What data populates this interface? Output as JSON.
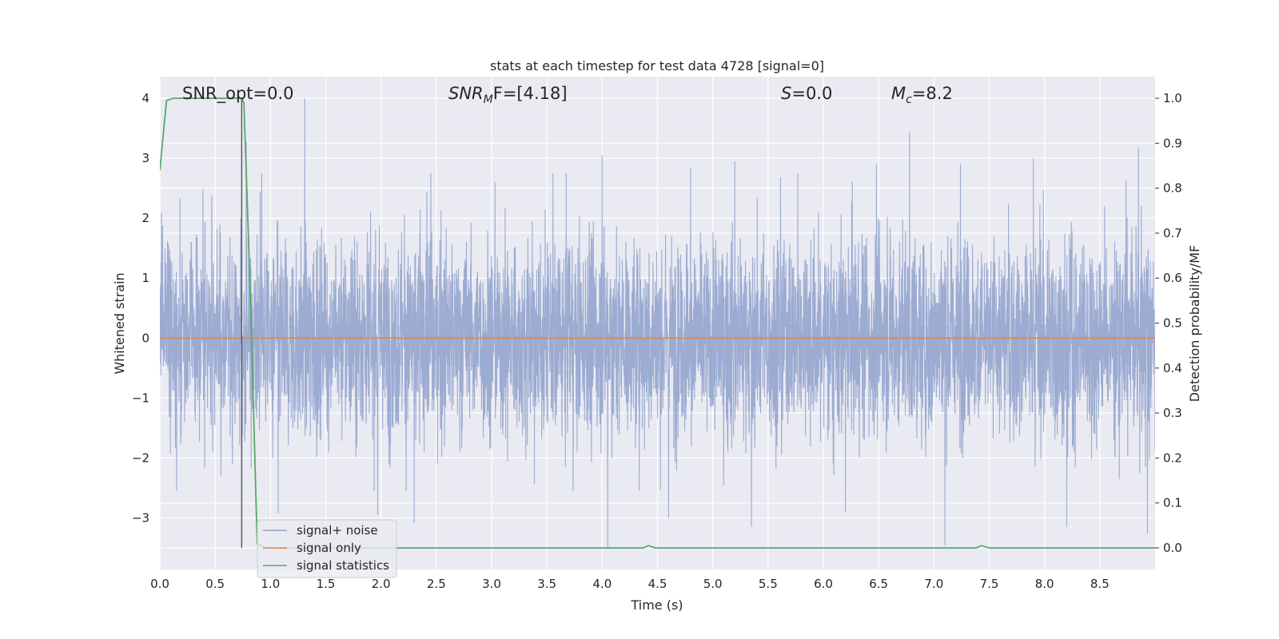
{
  "chart_data": {
    "type": "line",
    "title": "stats at each timestep for test data 4728 [signal=0]",
    "xlabel": "Time (s)",
    "ylabel_left": "Whitened strain",
    "ylabel_right": "Detection probability/MF",
    "xlim": [
      0.0,
      9.0
    ],
    "ylim_left": [
      -3.86,
      4.36
    ],
    "ylim_right": [
      -0.048,
      1.048
    ],
    "x_ticks": [
      "0.0",
      "0.5",
      "1.0",
      "1.5",
      "2.0",
      "2.5",
      "3.0",
      "3.5",
      "4.0",
      "4.5",
      "5.0",
      "5.5",
      "6.0",
      "6.5",
      "7.0",
      "7.5",
      "8.0",
      "8.5"
    ],
    "y_ticks_left": [
      "−3",
      "−2",
      "−1",
      "0",
      "1",
      "2",
      "3",
      "4"
    ],
    "y_ticks_right": [
      "0.0",
      "0.1",
      "0.2",
      "0.3",
      "0.4",
      "0.5",
      "0.6",
      "0.7",
      "0.8",
      "0.9",
      "1.0"
    ],
    "annotations": [
      {
        "id": "snr_opt",
        "text": "SNR_opt=0.0"
      },
      {
        "id": "snr_mf",
        "text_main": "SNR",
        "text_sub": "M",
        "text_tail": "F=[4.18]"
      },
      {
        "id": "s",
        "text_main": "S",
        "text_tail": "=0.0"
      },
      {
        "id": "mc",
        "text_main": "M",
        "text_sub": "c",
        "text_tail": "=8.2"
      }
    ],
    "legend": {
      "placement": "lower-left",
      "entries": [
        {
          "label": "signal+ noise",
          "color": "#8da0cb"
        },
        {
          "label": "signal only",
          "color": "#dd8452"
        },
        {
          "label": "signal statistics",
          "color": "#55a868"
        }
      ]
    },
    "grid": true,
    "colors": {
      "background": "#eaeaf2",
      "grid": "#ffffff",
      "noise": "#8da0cb",
      "signal": "#dd8452",
      "stats": "#55a868",
      "marker": "#555555"
    },
    "series": [
      {
        "name": "signal+ noise",
        "axis": "left",
        "kind": "noise",
        "duration_s": 9.0,
        "core_sigma": 0.82,
        "peaks": [
          {
            "x": 0.73,
            "y": 2.0
          },
          {
            "x": 0.74,
            "y": -2.55
          },
          {
            "x": 0.78,
            "y": 3.28
          },
          {
            "x": 1.31,
            "y": 4.0
          },
          {
            "x": 1.07,
            "y": -2.92
          },
          {
            "x": 1.97,
            "y": -2.95
          },
          {
            "x": 2.3,
            "y": -3.08
          },
          {
            "x": 3.03,
            "y": 2.6
          },
          {
            "x": 4.0,
            "y": 3.05
          },
          {
            "x": 4.05,
            "y": -3.5
          },
          {
            "x": 4.6,
            "y": -3.0
          },
          {
            "x": 4.8,
            "y": 2.85
          },
          {
            "x": 5.2,
            "y": 2.95
          },
          {
            "x": 5.35,
            "y": -3.15
          },
          {
            "x": 6.48,
            "y": 2.9
          },
          {
            "x": 6.78,
            "y": 3.43
          },
          {
            "x": 7.1,
            "y": -3.45
          },
          {
            "x": 7.24,
            "y": 2.9
          },
          {
            "x": 7.9,
            "y": 3.0
          },
          {
            "x": 8.2,
            "y": -3.15
          },
          {
            "x": 8.85,
            "y": 3.18
          },
          {
            "x": 8.93,
            "y": -3.26
          },
          {
            "x": 0.15,
            "y": -2.55
          },
          {
            "x": 2.45,
            "y": 2.75
          },
          {
            "x": 6.2,
            "y": -2.9
          }
        ]
      },
      {
        "name": "signal only",
        "axis": "left",
        "kind": "line",
        "x": [
          0.0,
          9.0
        ],
        "y": [
          0.0,
          0.0
        ]
      },
      {
        "name": "signal statistics",
        "axis": "right",
        "kind": "line",
        "x": [
          0.0,
          0.06,
          0.12,
          0.3,
          0.5,
          0.74,
          0.76,
          0.82,
          0.88,
          0.95,
          4.3,
          4.37,
          4.42,
          4.48,
          7.3,
          7.38,
          7.43,
          7.5,
          9.0
        ],
        "y": [
          0.84,
          0.995,
          1.0,
          1.0,
          1.0,
          1.0,
          0.99,
          0.55,
          0.01,
          0.0,
          0.0,
          0.0,
          0.005,
          0.0,
          0.0,
          0.0,
          0.005,
          0.0,
          0.0
        ]
      },
      {
        "name": "marker",
        "axis": "left",
        "kind": "vline",
        "x": 0.74,
        "y": [
          -3.5,
          4.0
        ]
      }
    ]
  }
}
